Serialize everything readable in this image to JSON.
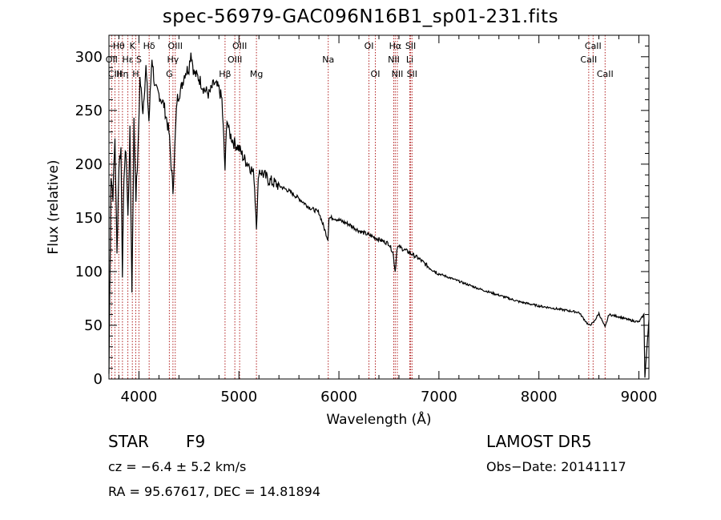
{
  "chart_data": {
    "type": "line",
    "title": "spec-56979-GAC096N16B1_sp01-231.fits",
    "xlabel": "Wavelength (Å)",
    "ylabel": "Flux (relative)",
    "xlim": [
      3700,
      9100
    ],
    "ylim": [
      0,
      320
    ],
    "xticks": [
      4000,
      5000,
      6000,
      7000,
      8000,
      9000
    ],
    "yticks": [
      0,
      50,
      100,
      150,
      200,
      250,
      300
    ],
    "grid": false,
    "line_color": "#000000",
    "marker_color": "#b22222",
    "series": [
      {
        "x": [
          3700,
          3720,
          3740,
          3760,
          3780,
          3800,
          3820,
          3835,
          3850,
          3870,
          3890,
          3910,
          3930,
          3950,
          3970,
          3990,
          4010,
          4040,
          4070,
          4100,
          4130,
          4160,
          4200,
          4250,
          4300,
          4340,
          4380,
          4420,
          4460,
          4500,
          4520,
          4550,
          4600,
          4650,
          4700,
          4750,
          4800,
          4830,
          4861,
          4880,
          4900,
          4950,
          5000,
          5050,
          5100,
          5150,
          5175,
          5200,
          5250,
          5300,
          5400,
          5500,
          5600,
          5700,
          5800,
          5890,
          5900,
          5950,
          6000,
          6100,
          6200,
          6300,
          6400,
          6500,
          6540,
          6563,
          6580,
          6600,
          6700,
          6800,
          6900,
          7000,
          7200,
          7400,
          7600,
          7800,
          8000,
          8200,
          8400,
          8498,
          8542,
          8600,
          8662,
          8700,
          8800,
          8900,
          9000,
          9050,
          9060,
          9100
        ],
        "y": [
          5,
          190,
          170,
          225,
          115,
          200,
          215,
          100,
          190,
          215,
          150,
          230,
          80,
          240,
          170,
          210,
          280,
          250,
          290,
          240,
          300,
          270,
          265,
          255,
          230,
          175,
          260,
          270,
          285,
          290,
          305,
          285,
          280,
          270,
          265,
          275,
          270,
          260,
          195,
          245,
          230,
          220,
          215,
          205,
          200,
          190,
          145,
          195,
          190,
          185,
          180,
          175,
          168,
          160,
          155,
          130,
          150,
          150,
          148,
          144,
          138,
          134,
          130,
          126,
          118,
          100,
          122,
          123,
          118,
          112,
          104,
          98,
          91,
          84,
          78,
          72,
          68,
          65,
          62,
          50,
          52,
          61,
          48,
          60,
          58,
          55,
          53,
          60,
          2,
          55
        ]
      }
    ],
    "line_markers": [
      {
        "label": "Hθ",
        "x": 3798,
        "row": 1
      },
      {
        "label": "K",
        "x": 3934,
        "row": 1
      },
      {
        "label": "Hδ",
        "x": 4102,
        "row": 1
      },
      {
        "label": "OIII",
        "x": 4363,
        "row": 1
      },
      {
        "label": "OIII",
        "x": 5007,
        "row": 1
      },
      {
        "label": "OI",
        "x": 6300,
        "row": 1
      },
      {
        "label": "Hα",
        "x": 6563,
        "row": 1
      },
      {
        "label": "SII",
        "x": 6717,
        "row": 1
      },
      {
        "label": "CaII",
        "x": 8542,
        "row": 1
      },
      {
        "label": "OII",
        "x": 3727,
        "row": 2
      },
      {
        "label": "Hε",
        "x": 3889,
        "row": 2
      },
      {
        "label": "S",
        "x": 4000,
        "row": 2
      },
      {
        "label": "Hγ",
        "x": 4340,
        "row": 2
      },
      {
        "label": "OIII",
        "x": 4959,
        "row": 2
      },
      {
        "label": "Na",
        "x": 5893,
        "row": 2
      },
      {
        "label": "NII",
        "x": 6548,
        "row": 2
      },
      {
        "label": "Li",
        "x": 6708,
        "row": 2
      },
      {
        "label": "CaII",
        "x": 8498,
        "row": 2
      },
      {
        "label": "CIII",
        "x": 3760,
        "row": 3
      },
      {
        "label": "Hη",
        "x": 3835,
        "row": 3
      },
      {
        "label": "H",
        "x": 3968,
        "row": 3
      },
      {
        "label": "G",
        "x": 4304,
        "row": 3
      },
      {
        "label": "Hβ",
        "x": 4861,
        "row": 3
      },
      {
        "label": "Mg",
        "x": 5175,
        "row": 3
      },
      {
        "label": "OI",
        "x": 6364,
        "row": 3
      },
      {
        "label": "NII",
        "x": 6584,
        "row": 3
      },
      {
        "label": "SII",
        "x": 6731,
        "row": 3
      },
      {
        "label": "CaII",
        "x": 8662,
        "row": 3
      }
    ]
  },
  "info": {
    "class": "STAR",
    "subclass": "F9",
    "survey": "LAMOST DR5",
    "cz": "cz = −6.4 ± 5.2 km/s",
    "obs_date": "Obs−Date: 20141117",
    "radec": "RA =  95.67617, DEC =  14.81894"
  }
}
